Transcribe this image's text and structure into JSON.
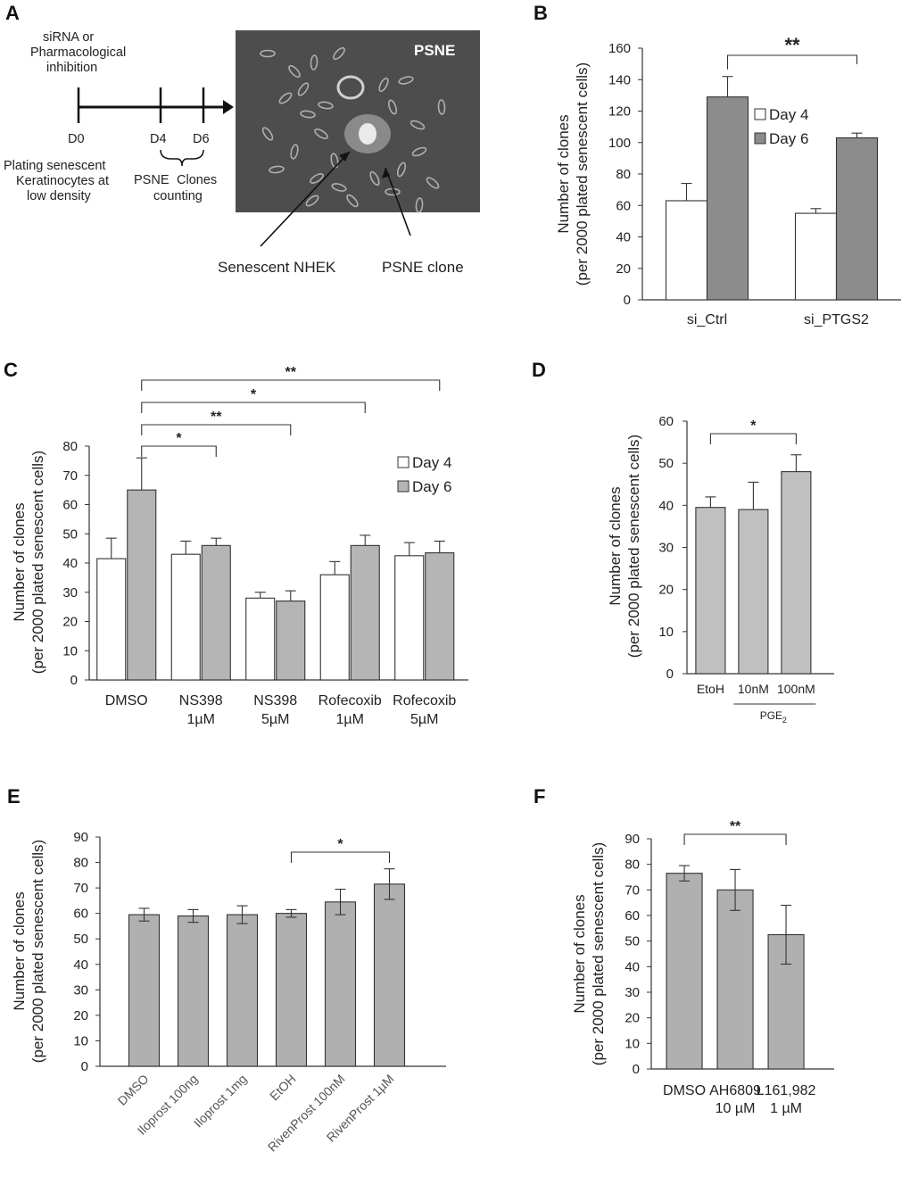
{
  "panels": {
    "A": {
      "letter": "A",
      "timeline": {
        "top_text": [
          "siRNA or",
          "Pharmacological",
          "inhibition"
        ],
        "d0": "D0",
        "d4": "D4",
        "d6": "D6",
        "bottom_left": [
          "Plating  senescent",
          "Keratinocytes at",
          "low density"
        ],
        "bottom_mid": [
          "PSNE",
          "Clones",
          "counting"
        ]
      },
      "image": {
        "overlay_label": "PSNE",
        "callout_left": "Senescent NHEK",
        "callout_right": "PSNE clone",
        "colors": {
          "background": "#4a4a4a",
          "cells": "#c8c8c8"
        }
      }
    }
  },
  "chart_data": [
    {
      "id": "B",
      "letter": "B",
      "type": "bar",
      "categories": [
        "si_Ctrl",
        "si_PTGS2"
      ],
      "series": [
        {
          "name": "Day 4",
          "values": [
            63,
            55
          ],
          "errors": [
            11,
            3
          ],
          "color": "#ffffff"
        },
        {
          "name": "Day 6",
          "values": [
            129,
            103
          ],
          "errors": [
            13,
            3
          ],
          "color": "#8c8c8c"
        }
      ],
      "ylabel": [
        "Number of clones",
        "(per 2000 plated senescent cells)"
      ],
      "ylim": [
        0,
        160
      ],
      "yticks": [
        0,
        20,
        40,
        60,
        80,
        100,
        120,
        140,
        160
      ],
      "legend": "top-right",
      "significance": [
        {
          "label": "**",
          "from": [
            0,
            1
          ],
          "to": [
            1,
            1
          ]
        }
      ]
    },
    {
      "id": "C",
      "letter": "C",
      "type": "bar",
      "categories": [
        [
          "DMSO"
        ],
        [
          "NS398",
          "1µM"
        ],
        [
          "NS398",
          "5µM"
        ],
        [
          "Rofecoxib",
          "1µM"
        ],
        [
          "Rofecoxib",
          "5µM"
        ]
      ],
      "series": [
        {
          "name": "Day 4",
          "values": [
            41.5,
            43,
            28,
            36,
            42.5
          ],
          "errors": [
            7,
            4.5,
            2,
            4.5,
            4.5
          ],
          "color": "#ffffff"
        },
        {
          "name": "Day 6",
          "values": [
            65,
            46,
            27,
            46,
            43.5
          ],
          "errors": [
            11,
            2.5,
            3.5,
            3.5,
            4
          ],
          "color": "#b5b5b5"
        }
      ],
      "ylabel": [
        "Number of clones",
        "(per 2000 plated senescent cells)"
      ],
      "ylim": [
        0,
        80
      ],
      "yticks": [
        0,
        10,
        20,
        30,
        40,
        50,
        60,
        70,
        80
      ],
      "legend": "top-right",
      "significance": [
        {
          "label": "**",
          "from": [
            0,
            1
          ],
          "to": [
            4,
            1
          ]
        },
        {
          "label": "*",
          "from": [
            0,
            1
          ],
          "to": [
            3,
            1
          ]
        },
        {
          "label": "**",
          "from": [
            0,
            1
          ],
          "to": [
            2,
            1
          ]
        },
        {
          "label": "*",
          "from": [
            0,
            1
          ],
          "to": [
            1,
            1
          ]
        }
      ]
    },
    {
      "id": "D",
      "letter": "D",
      "type": "bar",
      "categories": [
        "EtoH",
        "10nM",
        "100nM"
      ],
      "group_label": "PGE",
      "group_label_sub": "2",
      "series": [
        {
          "values": [
            39.5,
            39,
            48
          ],
          "errors": [
            2.5,
            6.5,
            4
          ],
          "color": "#c0c0c0"
        }
      ],
      "ylabel": [
        "Number of clones",
        "(per 2000 plated senescent cells)"
      ],
      "ylim": [
        0,
        60
      ],
      "yticks": [
        0,
        10,
        20,
        30,
        40,
        50,
        60
      ],
      "significance": [
        {
          "label": "*",
          "from": [
            0,
            0
          ],
          "to": [
            2,
            0
          ]
        }
      ]
    },
    {
      "id": "E",
      "letter": "E",
      "type": "bar",
      "categories": [
        "DMSO",
        "Iloprost 100ng",
        "Iloprost 1mg",
        "EtOH",
        "RivenProst 100nM",
        "RivenProst 1µM"
      ],
      "series": [
        {
          "values": [
            59.5,
            59,
            59.5,
            60,
            64.5,
            71.5
          ],
          "errors": [
            2.5,
            2.5,
            3.5,
            1.5,
            5,
            6
          ],
          "color": "#b0b0b0"
        }
      ],
      "ylabel": [
        "Number of clones",
        "(per 2000 plated senescent cells)"
      ],
      "ylim": [
        0,
        90
      ],
      "yticks": [
        0,
        10,
        20,
        30,
        40,
        50,
        60,
        70,
        80,
        90
      ],
      "significance": [
        {
          "label": "*",
          "from": [
            3,
            0
          ],
          "to": [
            5,
            0
          ]
        }
      ]
    },
    {
      "id": "F",
      "letter": "F",
      "type": "bar",
      "categories": [
        [
          "DMSO"
        ],
        [
          "AH6809",
          "10 µM"
        ],
        [
          "L161,982",
          "1 µM"
        ]
      ],
      "series": [
        {
          "values": [
            76.5,
            70,
            52.5
          ],
          "errors": [
            3,
            8,
            11.5
          ],
          "color": "#b0b0b0"
        }
      ],
      "ylabel": [
        "Number of clones",
        "(per 2000 plated senescent cells)"
      ],
      "ylim": [
        0,
        90
      ],
      "yticks": [
        0,
        10,
        20,
        30,
        40,
        50,
        60,
        70,
        80,
        90
      ],
      "significance": [
        {
          "label": "**",
          "from": [
            0,
            0
          ],
          "to": [
            2,
            0
          ]
        }
      ]
    }
  ]
}
